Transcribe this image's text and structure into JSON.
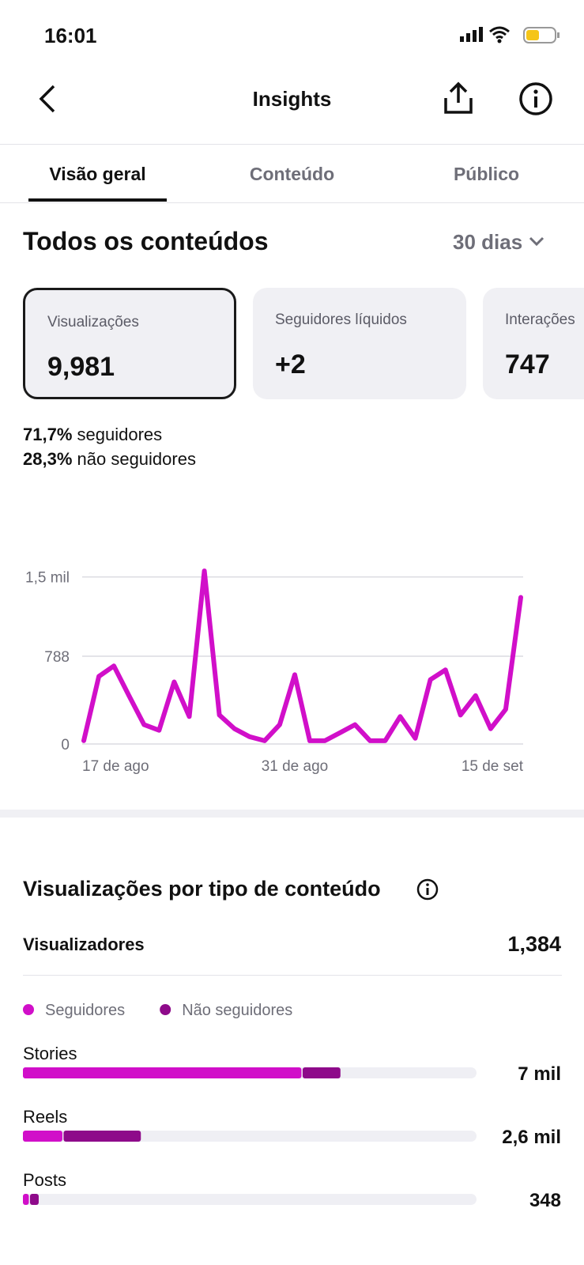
{
  "status_bar": {
    "time": "16:01"
  },
  "header": {
    "title": "Insights"
  },
  "tabs": [
    "Visão geral",
    "Conteúdo",
    "Público"
  ],
  "section": {
    "title": "Todos os conteúdos",
    "period": "30 dias"
  },
  "cards": [
    {
      "label": "Visualizações",
      "value": "9,981"
    },
    {
      "label": "Seguidores líquidos",
      "value": "+2"
    },
    {
      "label": "Interações",
      "value": "747"
    }
  ],
  "split": [
    {
      "percent": "71,7%",
      "label": "seguidores"
    },
    {
      "percent": "28,3%",
      "label": "não seguidores"
    }
  ],
  "viewers": {
    "label": "Visualizadores",
    "value": "1,384"
  },
  "chart_data": [
    {
      "type": "line",
      "categories": [
        "17 de ago",
        null,
        null,
        null,
        null,
        null,
        null,
        null,
        null,
        null,
        null,
        null,
        null,
        null,
        "31 de ago",
        null,
        null,
        null,
        null,
        null,
        null,
        null,
        null,
        null,
        null,
        null,
        null,
        null,
        null,
        "15 de set"
      ],
      "series": [
        {
          "name": "Visualizações",
          "color": "#d10fc9",
          "values": [
            30,
            607,
            701,
            434,
            173,
            123,
            557,
            246,
            1554,
            260,
            137,
            65,
            29,
            173,
            622,
            29,
            29,
            101,
            173,
            29,
            29,
            246,
            51,
            578,
            665,
            260,
            434,
            137,
            311,
            1316
          ]
        }
      ],
      "ylim": [
        0,
        1576
      ],
      "yticks": [
        0,
        788,
        {
          "value": 1500,
          "label": "1,5 mil"
        }
      ],
      "grid": true
    },
    {
      "type": "hbar-stacked",
      "title": "Visualizações por tipo de conteúdo",
      "categories": [
        "Stories",
        "Reels",
        "Posts"
      ],
      "series": [
        {
          "name": "Seguidores",
          "color": "#d10fc9",
          "values": [
            6140,
            870,
            130
          ]
        },
        {
          "name": "Não seguidores",
          "color": "#8e0a8a",
          "values": [
            860,
            1730,
            218
          ]
        }
      ],
      "totals": [
        7000,
        2600,
        348
      ],
      "total_labels": [
        "7 mil",
        "2,6 mil",
        "348"
      ],
      "xlim": [
        0,
        10000
      ],
      "track_color": "#efeff4"
    }
  ]
}
